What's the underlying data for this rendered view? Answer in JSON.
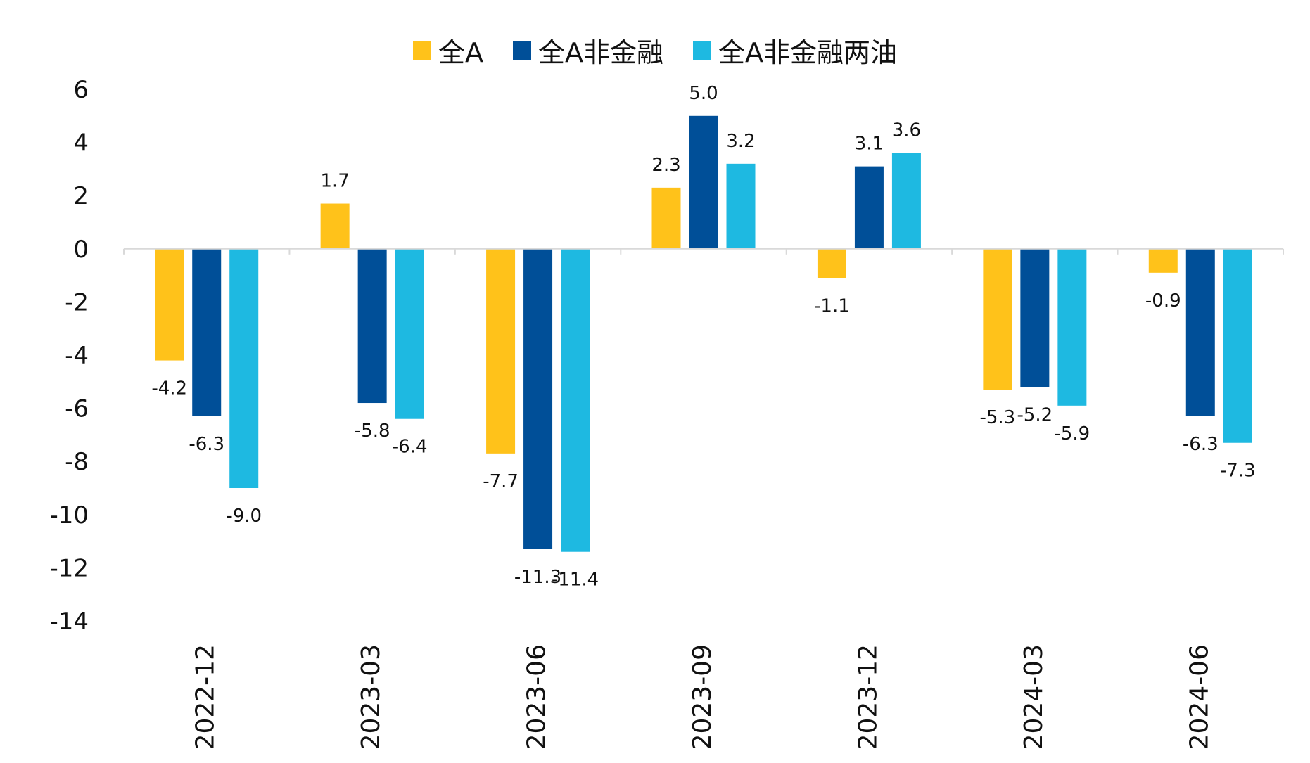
{
  "chart_data": {
    "type": "bar",
    "title": "",
    "xlabel": "",
    "ylabel": "",
    "categories": [
      "2022-12",
      "2023-03",
      "2023-06",
      "2023-09",
      "2023-12",
      "2024-03",
      "2024-06"
    ],
    "series": [
      {
        "name": "全A",
        "color": "#FFC21A",
        "values": [
          -4.2,
          1.7,
          -7.7,
          2.3,
          -1.1,
          -5.3,
          -0.9
        ]
      },
      {
        "name": "全A非金融",
        "color": "#004F98",
        "values": [
          -6.3,
          -5.8,
          -11.3,
          5.0,
          3.1,
          -5.2,
          -6.3
        ]
      },
      {
        "name": "全A非金融两油",
        "color": "#1EB9E1",
        "values": [
          -9.0,
          -6.4,
          -11.4,
          3.2,
          3.6,
          -5.9,
          -7.3
        ]
      }
    ],
    "ylim": [
      -14,
      6
    ],
    "yticks": [
      6,
      4,
      2,
      0,
      -2,
      -4,
      -6,
      -8,
      -10,
      -12,
      -14
    ],
    "grid": false,
    "legend_position": "top-center",
    "data_labels": true
  }
}
